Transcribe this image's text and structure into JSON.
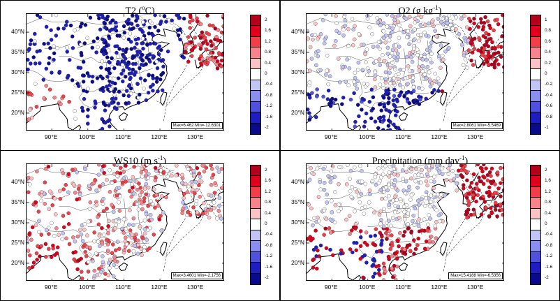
{
  "panels": [
    {
      "id": "t2",
      "title_main": "T2 (",
      "title_sup": "o",
      "title_tail": "C)",
      "maxmin": "Max=6.462 Min=-12.6301",
      "cbar_labels": [
        "2",
        "1.6",
        "1.2",
        "0.8",
        "0.4",
        "0",
        "-0.4",
        "-0.8",
        "-1.2",
        "-1.6",
        "-2"
      ]
    },
    {
      "id": "q2",
      "title_main": "Q2 (g kg",
      "title_sup": "-1",
      "title_tail": ")",
      "maxmin": "Max=2.8061 Min=-5.5469",
      "cbar_labels": [
        "1",
        "0.8",
        "0.6",
        "0.4",
        "0.2",
        "0",
        "-0.2",
        "-0.4",
        "-0.6",
        "-0.8",
        "-1"
      ]
    },
    {
      "id": "ws10",
      "title_main": "WS10 (m s",
      "title_sup": "-1",
      "title_tail": ")",
      "maxmin": "Max=3.4601 Min=-2.1756",
      "cbar_labels": [
        "2",
        "1.6",
        "1.2",
        "0.8",
        "0.4",
        "0",
        "-0.4",
        "-0.8",
        "-1.2",
        "-1.6",
        "-2"
      ]
    },
    {
      "id": "precip",
      "title_main": "Precipitation (mm day",
      "title_sup": "-1",
      "title_tail": ")",
      "maxmin": "Max=15.4188 Min=-6.5356",
      "cbar_labels": [
        "2",
        "1.6",
        "1.2",
        "0.8",
        "0.4",
        "0",
        "-0.4",
        "-0.8",
        "-1.2",
        "-1.6",
        "-2"
      ]
    }
  ],
  "lat_labels": [
    "40°N",
    "35°N",
    "30°N",
    "25°N",
    "20°N"
  ],
  "lon_labels": [
    "90°E",
    "100°E",
    "110°E",
    "120°E",
    "130°E"
  ],
  "colors": {
    "scale": [
      "#b3001b",
      "#e0001c",
      "#f23f47",
      "#f8838a",
      "#fbc3c6",
      "#ffffff",
      "#c2c4f5",
      "#8a8ef0",
      "#4f50de",
      "#1e1dc0",
      "#0a0a8c"
    ]
  }
}
